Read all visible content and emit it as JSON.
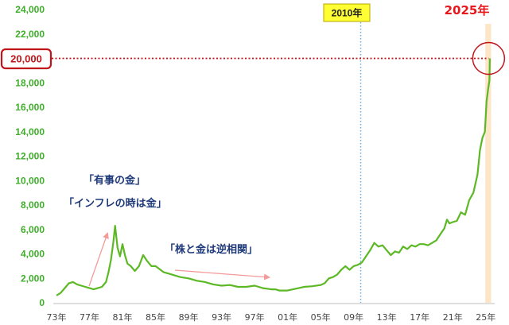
{
  "chart_data": {
    "type": "line",
    "title": "",
    "xlabel": "",
    "ylabel": "",
    "ylim": [
      0,
      24000
    ],
    "xlim": [
      1973,
      2025.7
    ],
    "grid": false,
    "legend": "none",
    "y_ticks": [
      {
        "value": 0,
        "label": "0"
      },
      {
        "value": 2000,
        "label": "2,000"
      },
      {
        "value": 4000,
        "label": "4,000"
      },
      {
        "value": 6000,
        "label": "6,000"
      },
      {
        "value": 8000,
        "label": "8,000"
      },
      {
        "value": 10000,
        "label": "10,000"
      },
      {
        "value": 12000,
        "label": "12,000"
      },
      {
        "value": 14000,
        "label": "14,000"
      },
      {
        "value": 16000,
        "label": "16,000"
      },
      {
        "value": 18000,
        "label": "18,000"
      },
      {
        "value": 20000,
        "label": "20,000"
      },
      {
        "value": 22000,
        "label": "22,000"
      },
      {
        "value": 24000,
        "label": "24,000"
      }
    ],
    "x_ticks": [
      {
        "value": 1973,
        "label": "73年"
      },
      {
        "value": 1977,
        "label": "77年"
      },
      {
        "value": 1981,
        "label": "81年"
      },
      {
        "value": 1985,
        "label": "85年"
      },
      {
        "value": 1989,
        "label": "89年"
      },
      {
        "value": 1993,
        "label": "93年"
      },
      {
        "value": 1997,
        "label": "97年"
      },
      {
        "value": 2001,
        "label": "01年"
      },
      {
        "value": 2005,
        "label": "05年"
      },
      {
        "value": 2009,
        "label": "09年"
      },
      {
        "value": 2013,
        "label": "13年"
      },
      {
        "value": 2017,
        "label": "17年"
      },
      {
        "value": 2021,
        "label": "21年"
      },
      {
        "value": 2025,
        "label": "25年"
      }
    ],
    "series": [
      {
        "x": [
          1973.0,
          1973.5,
          1974.0,
          1974.5,
          1975.0,
          1975.5,
          1976.0,
          1976.5,
          1977.0,
          1977.5,
          1978.0,
          1978.5,
          1979.0,
          1979.3,
          1979.6,
          1979.9,
          1980.1,
          1980.4,
          1980.7,
          1981.0,
          1981.3,
          1981.6,
          1982.0,
          1982.5,
          1983.0,
          1983.5,
          1984.0,
          1984.5,
          1985.0,
          1986.0,
          1987.0,
          1988.0,
          1989.0,
          1990.0,
          1991.0,
          1992.0,
          1993.0,
          1994.0,
          1995.0,
          1996.0,
          1997.0,
          1997.5,
          1998.0,
          1998.5,
          1999.0,
          1999.5,
          2000.0,
          2001.0,
          2002.0,
          2003.0,
          2004.0,
          2005.0,
          2005.5,
          2006.0,
          2006.5,
          2007.0,
          2007.5,
          2008.0,
          2008.5,
          2009.0,
          2009.5,
          2010.0,
          2010.5,
          2011.0,
          2011.5,
          2012.0,
          2012.5,
          2013.0,
          2013.5,
          2014.0,
          2014.5,
          2015.0,
          2015.5,
          2016.0,
          2016.5,
          2017.0,
          2017.5,
          2018.0,
          2018.5,
          2019.0,
          2019.5,
          2020.0,
          2020.3,
          2020.6,
          2021.0,
          2021.5,
          2022.0,
          2022.5,
          2023.0,
          2023.5,
          2024.0,
          2024.3,
          2024.6,
          2024.9,
          2025.1,
          2025.3,
          2025.45,
          2025.5
        ],
        "y": [
          600,
          800,
          1200,
          1600,
          1700,
          1500,
          1400,
          1300,
          1200,
          1100,
          1200,
          1300,
          1700,
          2500,
          3500,
          5000,
          6300,
          4500,
          3800,
          4800,
          3900,
          3200,
          3000,
          2600,
          3000,
          3900,
          3400,
          3000,
          3000,
          2500,
          2300,
          2100,
          2000,
          1800,
          1700,
          1500,
          1400,
          1450,
          1300,
          1300,
          1400,
          1300,
          1200,
          1150,
          1100,
          1100,
          1000,
          1000,
          1150,
          1300,
          1350,
          1450,
          1600,
          2000,
          2100,
          2300,
          2700,
          3000,
          2700,
          3000,
          3100,
          3300,
          3800,
          4300,
          4900,
          4600,
          4700,
          4300,
          3900,
          4200,
          4100,
          4600,
          4400,
          4700,
          4600,
          4800,
          4800,
          4700,
          4900,
          5100,
          5600,
          6100,
          6800,
          6500,
          6600,
          6700,
          7400,
          7200,
          8400,
          9000,
          10500,
          12500,
          13500,
          14000,
          16500,
          17500,
          18200,
          20000
        ]
      }
    ],
    "annotations": {
      "tag_2010": "2010年",
      "tag_2025": "2025年",
      "highlight_value": "20,000",
      "note_safe_haven": "「有事の金」",
      "note_inflation": "「インフレの時は金」",
      "note_stocks_gold": "「株と金は逆相関」"
    },
    "colors": {
      "line": "#5cb825",
      "y_tick_labels": "#3fae2a",
      "dotted_2010": "#5aa9df",
      "dotted_20000": "#c0151b",
      "box_2010_fill": "#ffff33",
      "box_2010_border": "#b8a400",
      "tag_2025_text": "#e8161b",
      "band_2025": "#fde5c8",
      "arrows": "#f39a9a",
      "notes": "#1f3a7a"
    }
  }
}
